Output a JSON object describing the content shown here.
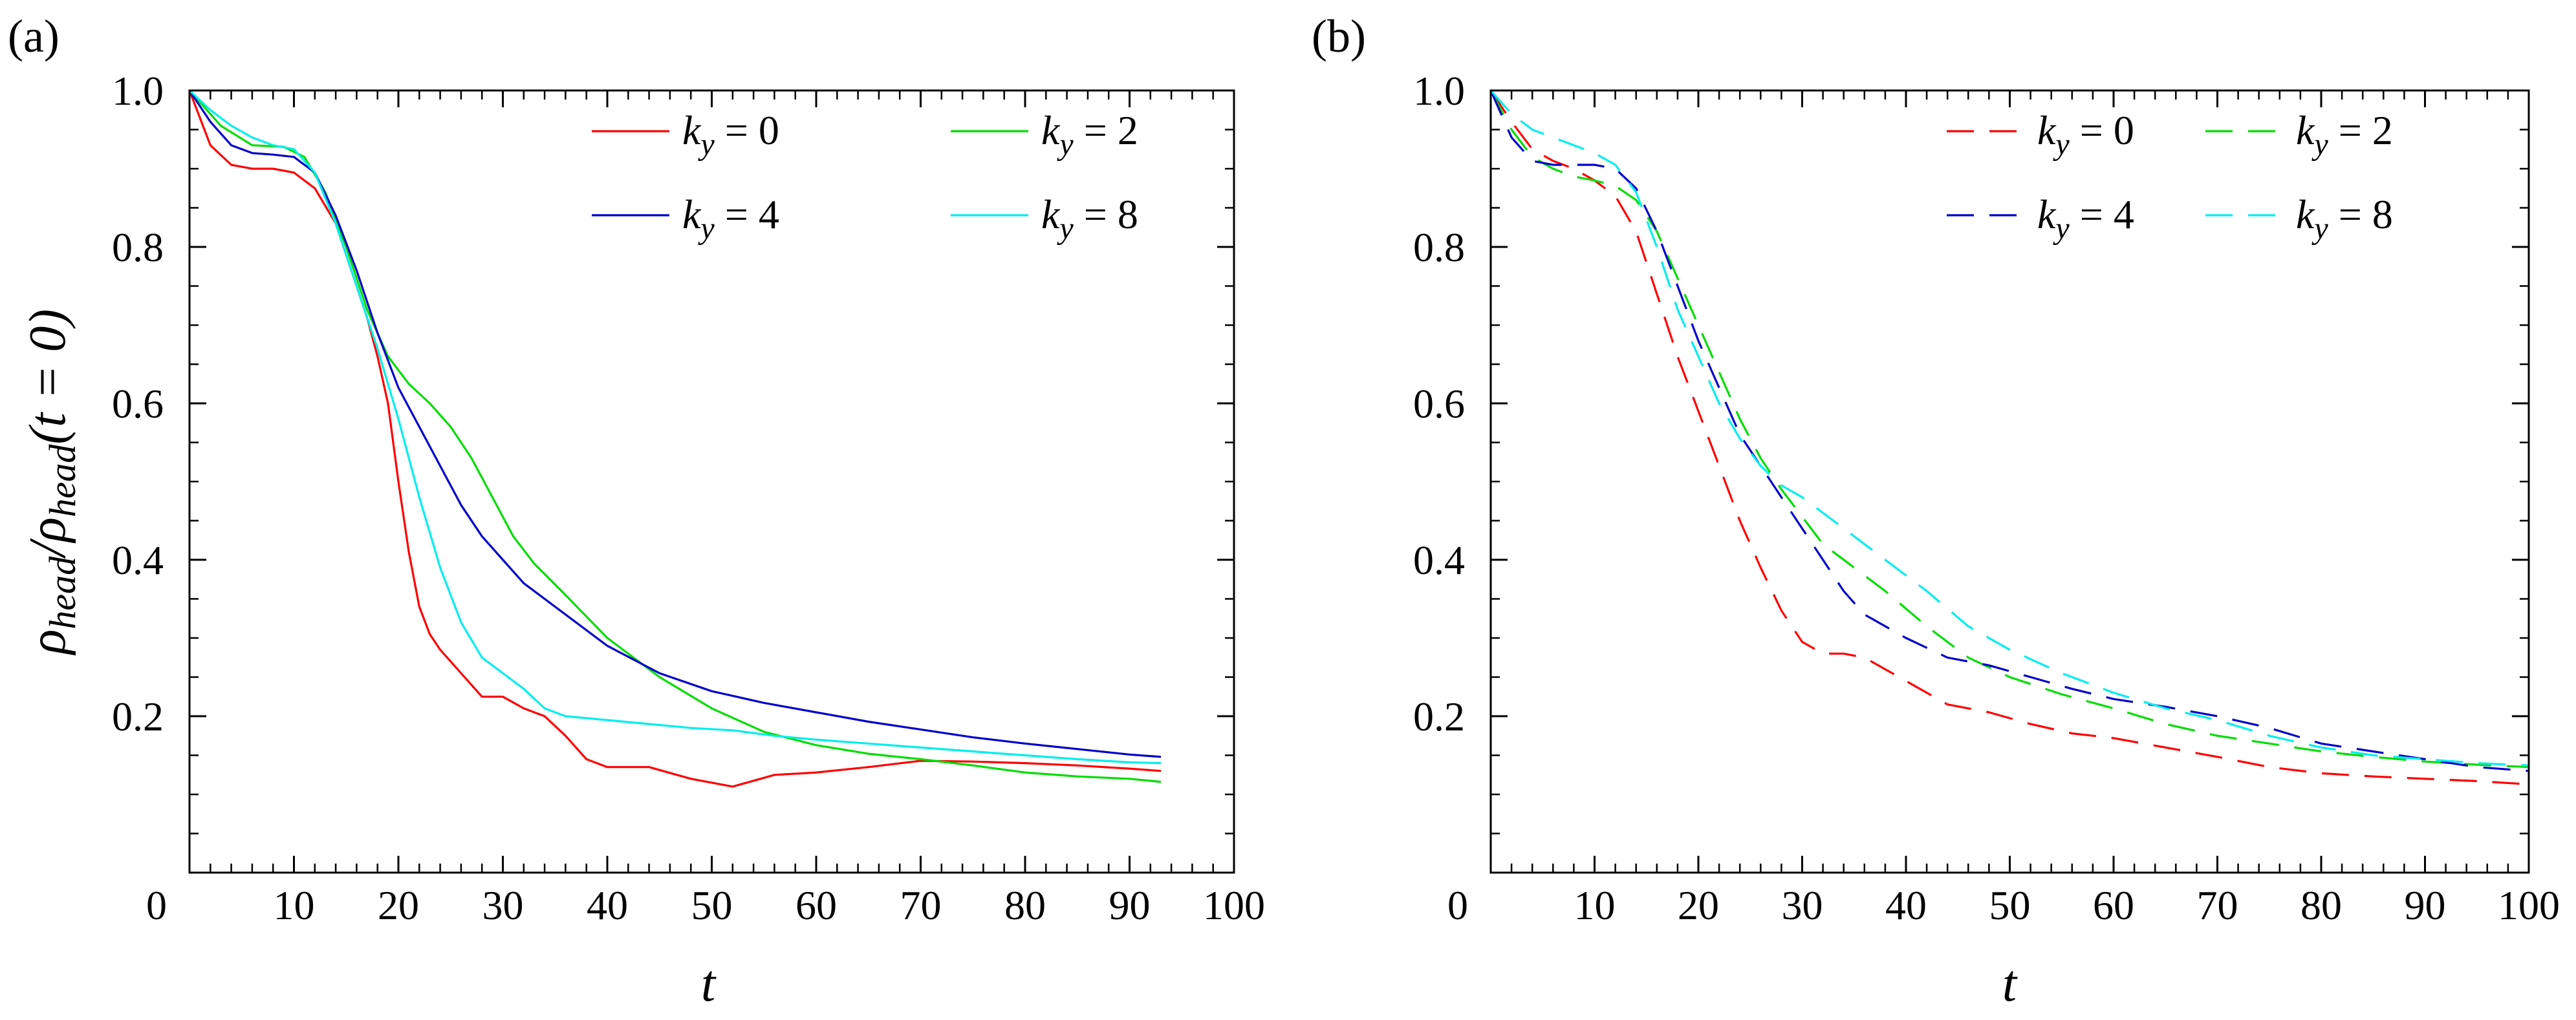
{
  "chart_data": [
    {
      "type": "line",
      "panel_label": "(a)",
      "xlabel": "t",
      "ylabel_parts": [
        "ρ",
        "head",
        "/ρ",
        "head",
        "(t = 0)"
      ],
      "xlim": [
        0,
        100
      ],
      "ylim": [
        0,
        1.0
      ],
      "x_ticks": [
        0,
        10,
        20,
        30,
        40,
        50,
        60,
        70,
        80,
        90,
        100
      ],
      "y_ticks": [
        0.2,
        0.4,
        0.6,
        0.8,
        1.0
      ],
      "x_tick_labels": [
        "0",
        "10",
        "20",
        "30",
        "40",
        "50",
        "60",
        "70",
        "80",
        "90",
        "100"
      ],
      "y_tick_labels": [
        "0.2",
        "0.4",
        "0.6",
        "0.8",
        "1.0"
      ],
      "line_style": "solid",
      "legend_position": "top-right",
      "series": [
        {
          "name": "k_y = 0",
          "label_k": "k",
          "label_sub": "y",
          "label_val": " = 0",
          "color": "#ff0000",
          "x": [
            0,
            2,
            4,
            6,
            8,
            10,
            12,
            14,
            16,
            17,
            18,
            19,
            20,
            21,
            22,
            23,
            24,
            25,
            26,
            28,
            30,
            32,
            34,
            36,
            38,
            40,
            44,
            48,
            52,
            56,
            60,
            65,
            70,
            75,
            80,
            85,
            90,
            93
          ],
          "y": [
            1.0,
            0.93,
            0.905,
            0.9,
            0.9,
            0.895,
            0.875,
            0.83,
            0.75,
            0.71,
            0.66,
            0.6,
            0.5,
            0.41,
            0.34,
            0.305,
            0.285,
            0.27,
            0.255,
            0.225,
            0.225,
            0.21,
            0.2,
            0.175,
            0.145,
            0.135,
            0.135,
            0.12,
            0.11,
            0.125,
            0.128,
            0.135,
            0.143,
            0.142,
            0.14,
            0.137,
            0.133,
            0.13
          ]
        },
        {
          "name": "k_y = 2",
          "label_k": "k",
          "label_sub": "y",
          "label_val": " = 2",
          "color": "#00dd00",
          "x": [
            0,
            3,
            6,
            9,
            11,
            13,
            15,
            17,
            19,
            21,
            23,
            25,
            27,
            29,
            31,
            33,
            36,
            40,
            45,
            50,
            55,
            60,
            65,
            70,
            75,
            80,
            85,
            90,
            93
          ],
          "y": [
            1.0,
            0.955,
            0.93,
            0.928,
            0.915,
            0.87,
            0.8,
            0.72,
            0.66,
            0.625,
            0.6,
            0.57,
            0.53,
            0.48,
            0.43,
            0.395,
            0.355,
            0.3,
            0.25,
            0.21,
            0.18,
            0.163,
            0.152,
            0.145,
            0.137,
            0.128,
            0.123,
            0.12,
            0.116
          ]
        },
        {
          "name": "k_y = 4",
          "label_k": "k",
          "label_sub": "y",
          "label_val": " = 4",
          "color": "#0000cc",
          "x": [
            0,
            2,
            4,
            6,
            8,
            10,
            12,
            14,
            16,
            18,
            20,
            22,
            24,
            26,
            28,
            30,
            32,
            35,
            40,
            45,
            50,
            55,
            60,
            65,
            70,
            75,
            80,
            85,
            90,
            93
          ],
          "y": [
            1.0,
            0.96,
            0.93,
            0.92,
            0.918,
            0.915,
            0.895,
            0.84,
            0.77,
            0.69,
            0.62,
            0.57,
            0.52,
            0.47,
            0.43,
            0.4,
            0.37,
            0.34,
            0.29,
            0.255,
            0.232,
            0.217,
            0.205,
            0.193,
            0.183,
            0.173,
            0.165,
            0.158,
            0.151,
            0.148
          ]
        },
        {
          "name": "k_y = 8",
          "label_k": "k",
          "label_sub": "y",
          "label_val": " = 8",
          "color": "#00eeee",
          "x": [
            0,
            2,
            4,
            6,
            8,
            10,
            12,
            14,
            16,
            18,
            20,
            22,
            24,
            26,
            28,
            30,
            32,
            34,
            36,
            40,
            44,
            48,
            52,
            56,
            60,
            65,
            70,
            75,
            80,
            85,
            90,
            93
          ],
          "y": [
            1.0,
            0.975,
            0.955,
            0.94,
            0.93,
            0.925,
            0.895,
            0.83,
            0.75,
            0.67,
            0.58,
            0.48,
            0.39,
            0.32,
            0.275,
            0.255,
            0.235,
            0.21,
            0.2,
            0.195,
            0.19,
            0.185,
            0.182,
            0.175,
            0.17,
            0.165,
            0.16,
            0.155,
            0.15,
            0.145,
            0.141,
            0.14
          ]
        }
      ]
    },
    {
      "type": "line",
      "panel_label": "(b)",
      "xlabel": "t",
      "xlim": [
        0,
        100
      ],
      "ylim": [
        0,
        1.0
      ],
      "x_ticks": [
        0,
        10,
        20,
        30,
        40,
        50,
        60,
        70,
        80,
        90,
        100
      ],
      "y_ticks": [
        0.2,
        0.4,
        0.6,
        0.8,
        1.0
      ],
      "x_tick_labels": [
        "0",
        "10",
        "20",
        "30",
        "40",
        "50",
        "60",
        "70",
        "80",
        "90",
        "100"
      ],
      "y_tick_labels": [
        "0.2",
        "0.4",
        "0.6",
        "0.8",
        "1.0"
      ],
      "line_style": "dashed",
      "legend_position": "top-right",
      "series": [
        {
          "name": "k_y = 0",
          "label_k": "k",
          "label_sub": "y",
          "label_val": " = 0",
          "color": "#ff0000",
          "x": [
            0,
            2,
            4,
            6,
            8,
            10,
            12,
            14,
            16,
            18,
            20,
            22,
            24,
            26,
            28,
            30,
            32,
            34,
            36,
            38,
            40,
            44,
            48,
            52,
            56,
            60,
            65,
            70,
            75,
            80,
            85,
            90,
            95,
            100
          ],
          "y": [
            1.0,
            0.96,
            0.925,
            0.91,
            0.9,
            0.885,
            0.865,
            0.82,
            0.74,
            0.66,
            0.59,
            0.52,
            0.45,
            0.39,
            0.335,
            0.295,
            0.28,
            0.28,
            0.275,
            0.26,
            0.245,
            0.215,
            0.205,
            0.19,
            0.178,
            0.172,
            0.16,
            0.148,
            0.135,
            0.127,
            0.123,
            0.12,
            0.117,
            0.113
          ]
        },
        {
          "name": "k_y = 2",
          "label_k": "k",
          "label_sub": "y",
          "label_val": " = 2",
          "color": "#00dd00",
          "x": [
            0,
            2,
            4,
            6,
            8,
            10,
            12,
            14,
            16,
            18,
            20,
            22,
            24,
            26,
            28,
            30,
            32,
            35,
            38,
            42,
            46,
            50,
            55,
            60,
            65,
            70,
            75,
            80,
            85,
            90,
            95,
            100
          ],
          "y": [
            1.0,
            0.95,
            0.915,
            0.9,
            0.89,
            0.885,
            0.878,
            0.86,
            0.82,
            0.76,
            0.7,
            0.64,
            0.58,
            0.53,
            0.49,
            0.455,
            0.42,
            0.39,
            0.36,
            0.315,
            0.275,
            0.25,
            0.228,
            0.21,
            0.19,
            0.175,
            0.165,
            0.155,
            0.148,
            0.142,
            0.138,
            0.135
          ]
        },
        {
          "name": "k_y = 4",
          "label_k": "k",
          "label_sub": "y",
          "label_val": " = 4",
          "color": "#0000cc",
          "x": [
            0,
            2,
            4,
            6,
            8,
            10,
            12,
            14,
            16,
            18,
            20,
            22,
            24,
            26,
            28,
            30,
            32,
            34,
            36,
            40,
            44,
            48,
            52,
            56,
            60,
            65,
            70,
            75,
            80,
            85,
            90,
            95,
            100
          ],
          "y": [
            1.0,
            0.94,
            0.91,
            0.905,
            0.905,
            0.905,
            0.9,
            0.875,
            0.82,
            0.75,
            0.68,
            0.62,
            0.56,
            0.52,
            0.48,
            0.44,
            0.4,
            0.36,
            0.33,
            0.3,
            0.275,
            0.265,
            0.25,
            0.235,
            0.222,
            0.212,
            0.2,
            0.185,
            0.165,
            0.155,
            0.145,
            0.135,
            0.13
          ]
        },
        {
          "name": "k_y = 8",
          "label_k": "k",
          "label_sub": "y",
          "label_val": " = 8",
          "color": "#00eeee",
          "x": [
            0,
            2,
            4,
            6,
            8,
            10,
            12,
            14,
            16,
            18,
            20,
            22,
            24,
            26,
            28,
            30,
            32,
            35,
            38,
            42,
            46,
            50,
            55,
            60,
            65,
            70,
            75,
            80,
            85,
            90,
            95,
            100
          ],
          "y": [
            1.0,
            0.97,
            0.95,
            0.94,
            0.93,
            0.92,
            0.905,
            0.87,
            0.8,
            0.72,
            0.66,
            0.6,
            0.555,
            0.52,
            0.495,
            0.48,
            0.46,
            0.43,
            0.4,
            0.36,
            0.315,
            0.285,
            0.255,
            0.23,
            0.21,
            0.195,
            0.175,
            0.16,
            0.15,
            0.145,
            0.14,
            0.137
          ]
        }
      ]
    }
  ]
}
